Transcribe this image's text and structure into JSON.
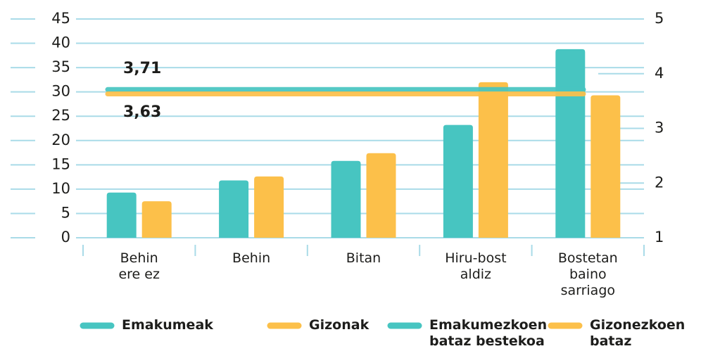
{
  "chart_data": {
    "type": "bar",
    "categories": [
      "Behin\nere ez",
      "Behin",
      "Bitan",
      "Hiru-bost\naldiz",
      "Bostetan\nbaino\nsarriago"
    ],
    "series": [
      {
        "name": "Emakumeak",
        "color": "#47c5c1",
        "values": [
          9.3,
          11.8,
          15.8,
          23.2,
          38.8
        ]
      },
      {
        "name": "Gizonak",
        "color": "#fcc04a",
        "values": [
          7.5,
          12.6,
          17.4,
          32.0,
          29.3
        ]
      }
    ],
    "averages": [
      {
        "name": "Emakumezkoen\nbataz bestekoa",
        "color": "#47c5c1",
        "value": 3.71,
        "value_label": "3,71",
        "axis": "y2"
      },
      {
        "name": "Gizonezkoen\nbataz bestekoa",
        "color": "#fcc04a",
        "value": 3.63,
        "value_label": "3,63",
        "axis": "y2"
      }
    ],
    "ylim": [
      0,
      45
    ],
    "yticks": [
      0,
      5,
      10,
      15,
      20,
      25,
      30,
      35,
      40,
      45
    ],
    "y2lim": [
      1,
      5
    ],
    "y2ticks": [
      1,
      2,
      3,
      4,
      5
    ],
    "grid": true
  }
}
